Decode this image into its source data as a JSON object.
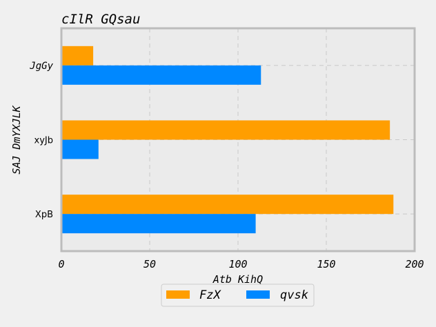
{
  "chart_data": {
    "type": "bar",
    "orientation": "horizontal",
    "title": "cIlR GQsau",
    "xlabel": "Atb KihQ",
    "ylabel": "SAJ DmYXJLK",
    "categories": [
      "XpB",
      "xyJb",
      "JgGy"
    ],
    "series": [
      {
        "name": "FzX",
        "color": "#ff9e00",
        "values": [
          188,
          186,
          18
        ]
      },
      {
        "name": "qvsk",
        "color": "#0088ff",
        "values": [
          110,
          21,
          113
        ]
      }
    ],
    "xlim": [
      0,
      200
    ],
    "xticks": [
      0,
      50,
      100,
      150,
      200
    ],
    "grid": true,
    "legend_position": "bottom-center"
  }
}
